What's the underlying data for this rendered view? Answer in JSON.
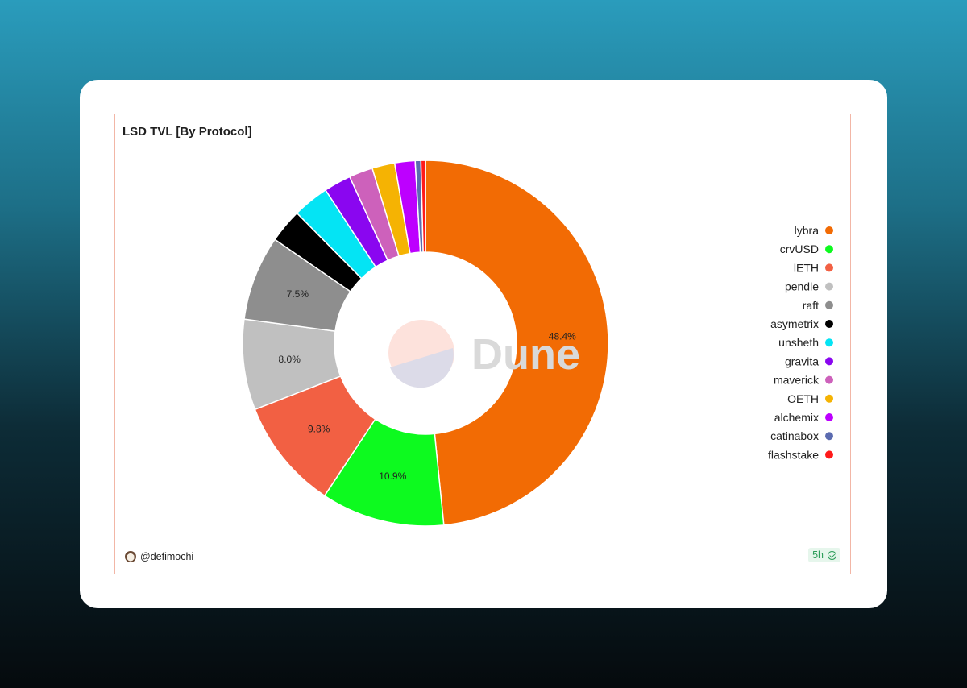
{
  "chart_data": {
    "type": "pie",
    "title": "LSD TVL [By Protocol]",
    "legend_position": "right",
    "slices": [
      {
        "name": "lybra",
        "value": 48.4,
        "color": "#f26b04"
      },
      {
        "name": "crvUSD",
        "value": 10.9,
        "color": "#0dfa1f"
      },
      {
        "name": "lETH",
        "value": 9.8,
        "color": "#f26043"
      },
      {
        "name": "pendle",
        "value": 8.0,
        "color": "#c0c0c0"
      },
      {
        "name": "raft",
        "value": 7.5,
        "color": "#8e8e8e"
      },
      {
        "name": "asymetrix",
        "value": 3.0,
        "color": "#000000"
      },
      {
        "name": "unsheth",
        "value": 3.2,
        "color": "#04e4f4"
      },
      {
        "name": "gravita",
        "value": 2.4,
        "color": "#8a06f0"
      },
      {
        "name": "maverick",
        "value": 2.1,
        "color": "#cd61bb"
      },
      {
        "name": "OETH",
        "value": 2.0,
        "color": "#f5b303"
      },
      {
        "name": "alchemix",
        "value": 1.8,
        "color": "#bd00ff"
      },
      {
        "name": "catinabox",
        "value": 0.5,
        "color": "#5b6bb0"
      },
      {
        "name": "flashstake",
        "value": 0.4,
        "color": "#ff1a1a"
      }
    ],
    "data_labels": {
      "lybra": "48.4%",
      "crvUSD": "10.9%",
      "lETH": "9.8%",
      "pendle": "8.0%",
      "raft": "7.5%"
    }
  },
  "watermark": "Dune",
  "footer": {
    "author": "@defimochi",
    "freshness": "5h"
  }
}
